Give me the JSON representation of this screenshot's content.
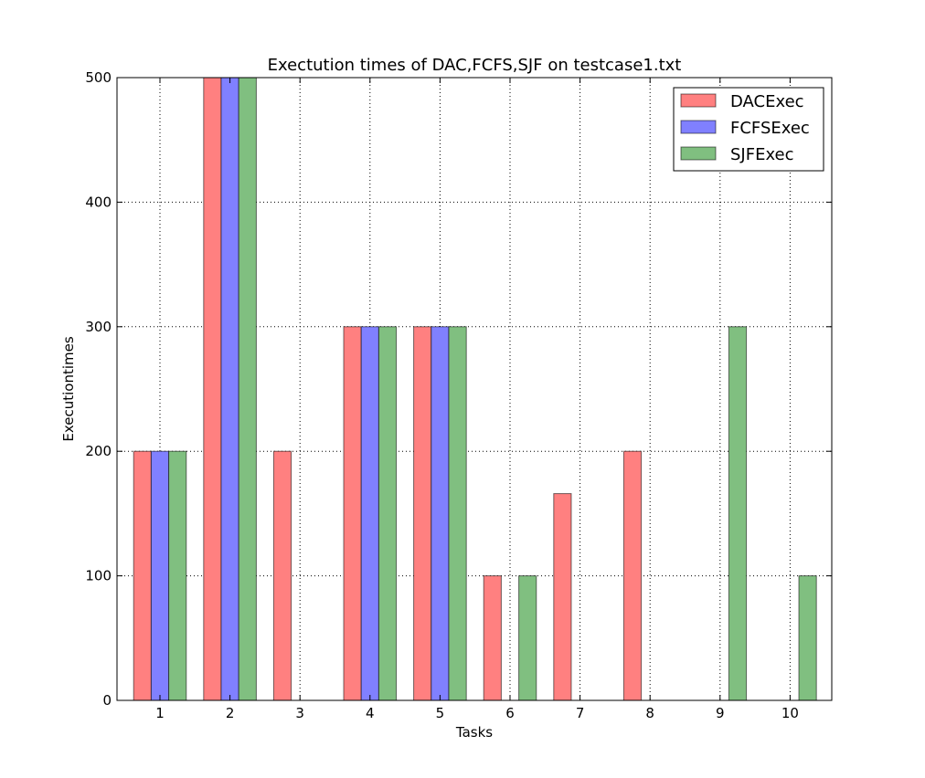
{
  "chart_data": {
    "type": "bar",
    "title": "Exectution times of DAC,FCFS,SJF on testcase1.txt",
    "xlabel": "Tasks",
    "ylabel": "Executiontimes",
    "categories": [
      "1",
      "2",
      "3",
      "4",
      "5",
      "6",
      "7",
      "8",
      "9",
      "10"
    ],
    "ylim": [
      0,
      500
    ],
    "yticks": [
      "0",
      "100",
      "200",
      "300",
      "400",
      "500"
    ],
    "grid": true,
    "legend_position": "top-right",
    "series": [
      {
        "name": "DACExec",
        "color": "#ff8080",
        "values": [
          200,
          500,
          200,
          300,
          300,
          100,
          166,
          200,
          0,
          0
        ]
      },
      {
        "name": "FCFSExec",
        "color": "#8080ff",
        "values": [
          200,
          500,
          0,
          300,
          300,
          0,
          0,
          0,
          0,
          0
        ]
      },
      {
        "name": "SJFExec",
        "color": "#80bf80",
        "values": [
          200,
          500,
          0,
          300,
          300,
          100,
          0,
          0,
          300,
          100
        ]
      }
    ]
  }
}
